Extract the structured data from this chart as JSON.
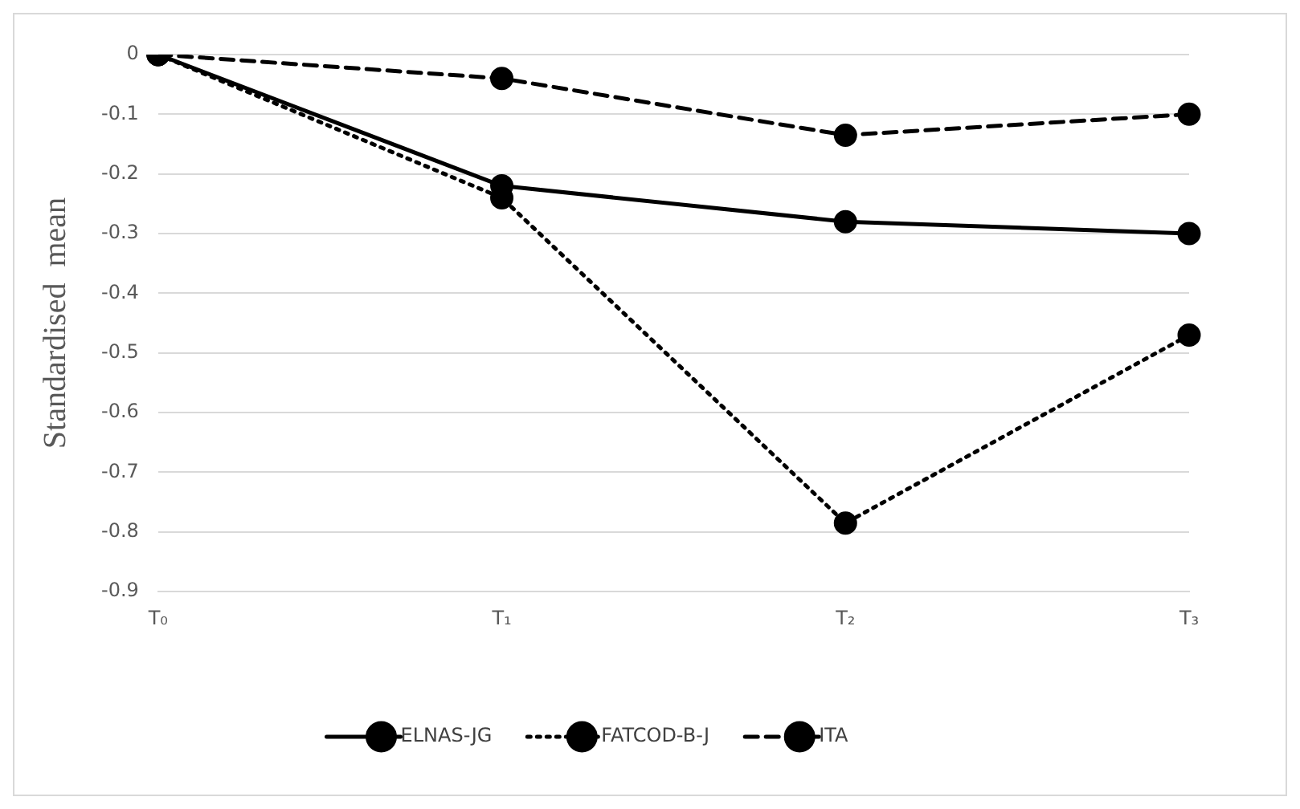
{
  "chart_data": {
    "type": "line",
    "ylabel": "Standardised  mean",
    "categories": [
      "T₀",
      "T₁",
      "T₂",
      "T₃"
    ],
    "series": [
      {
        "name": "ELNAS-JG",
        "color": "#000000",
        "line_style": "solid",
        "values": [
          0,
          -0.22,
          -0.28,
          -0.3
        ]
      },
      {
        "name": "FATCOD-B-J",
        "color": "#000000",
        "line_style": "dotted",
        "values": [
          0,
          -0.24,
          -0.785,
          -0.47
        ]
      },
      {
        "name": "ITA",
        "color": "#000000",
        "line_style": "dashed",
        "values": [
          0,
          -0.04,
          -0.135,
          -0.1
        ]
      }
    ],
    "ylim": [
      -0.9,
      0
    ],
    "yticks": [
      0,
      -0.1,
      -0.2,
      -0.3,
      -0.4,
      -0.5,
      -0.6,
      -0.7,
      -0.8,
      -0.9
    ],
    "grid": "y",
    "legend": "bottom",
    "marker": "circle"
  }
}
